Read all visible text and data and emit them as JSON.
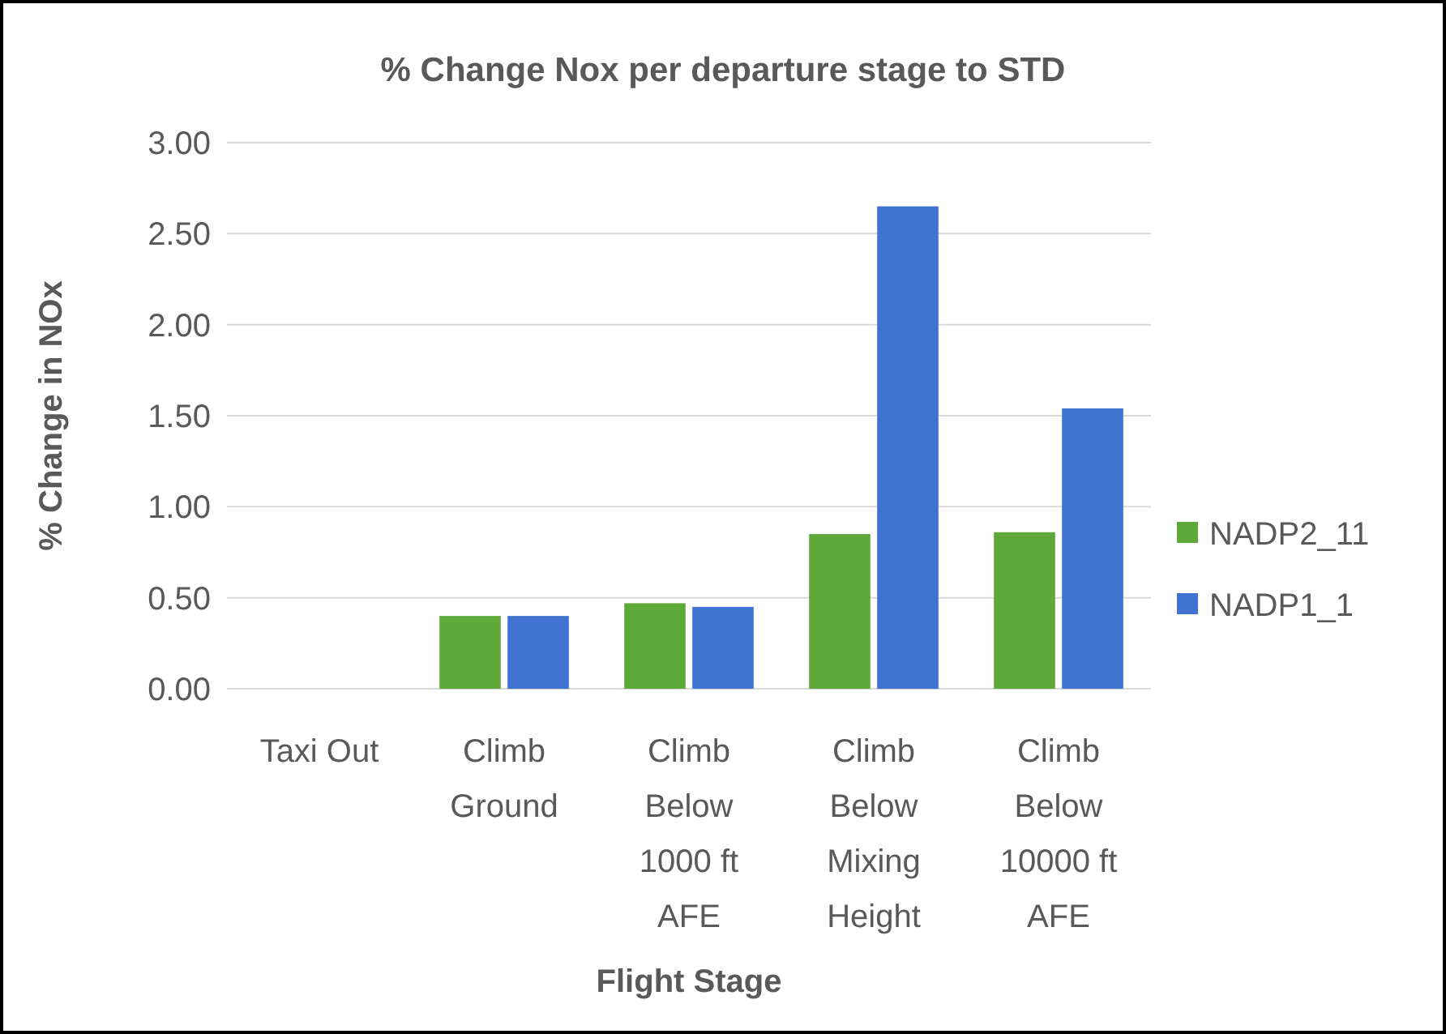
{
  "chart_data": {
    "type": "bar",
    "title": "% Change Nox per departure stage to STD",
    "xlabel": "Flight Stage",
    "ylabel": "% Change in NOx",
    "categories": [
      "Taxi Out",
      "Climb Ground",
      "Climb Below 1000 ft AFE",
      "Climb Below Mixing Height",
      "Climb Below 10000 ft AFE"
    ],
    "series": [
      {
        "name": "NADP2_11",
        "color": "#5fa83a",
        "values": [
          0,
          0.4,
          0.47,
          0.85,
          0.86
        ]
      },
      {
        "name": "NADP1_1",
        "color": "#3f72d1",
        "values": [
          0,
          0.4,
          0.45,
          2.65,
          1.54
        ]
      }
    ],
    "ylim": [
      0,
      3
    ],
    "yticks": [
      {
        "value": 0,
        "label": "0.00"
      },
      {
        "value": 0.5,
        "label": "0.50"
      },
      {
        "value": 1,
        "label": "1.00"
      },
      {
        "value": 1.5,
        "label": "1.50"
      },
      {
        "value": 2,
        "label": "2.00"
      },
      {
        "value": 2.5,
        "label": "2.50"
      },
      {
        "value": 3,
        "label": "3.00"
      }
    ],
    "grid": "y",
    "legend": "right"
  }
}
